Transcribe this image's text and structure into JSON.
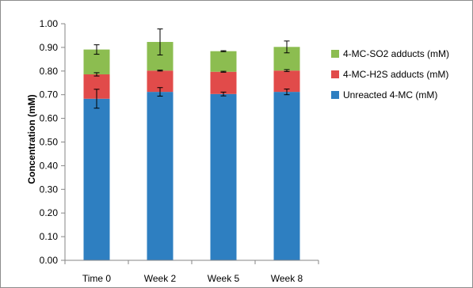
{
  "chart_data": {
    "type": "bar",
    "stacked": true,
    "title": "",
    "xlabel": "",
    "ylabel": "Concentration (mM)",
    "ylim": [
      0,
      1.0
    ],
    "ytick_step": 0.1,
    "ytick_labels": [
      "0.00",
      "0.10",
      "0.20",
      "0.30",
      "0.40",
      "0.50",
      "0.60",
      "0.70",
      "0.80",
      "0.90",
      "1.00"
    ],
    "categories": [
      "Time 0",
      "Week 2",
      "Week 5",
      "Week 8"
    ],
    "grid": false,
    "legend_position": "right",
    "series": [
      {
        "name": "Unreacted 4-MC (mM)",
        "color": "#2e7fc1",
        "values": [
          0.683,
          0.712,
          0.703,
          0.712
        ],
        "errors": [
          0.04,
          0.018,
          0.008,
          0.012
        ]
      },
      {
        "name": "4-MC-H2S adducts (mM)",
        "color": "#e14b4a",
        "values": [
          0.103,
          0.09,
          0.094,
          0.09
        ],
        "errors": [
          0.007,
          0.002,
          0.002,
          0.004
        ]
      },
      {
        "name": "4-MC-SO2 adducts (mM)",
        "color": "#8cbd50",
        "values": [
          0.105,
          0.121,
          0.087,
          0.1
        ],
        "errors": [
          0.02,
          0.055,
          0.002,
          0.025
        ]
      }
    ],
    "legend_order": [
      2,
      1,
      0
    ]
  }
}
